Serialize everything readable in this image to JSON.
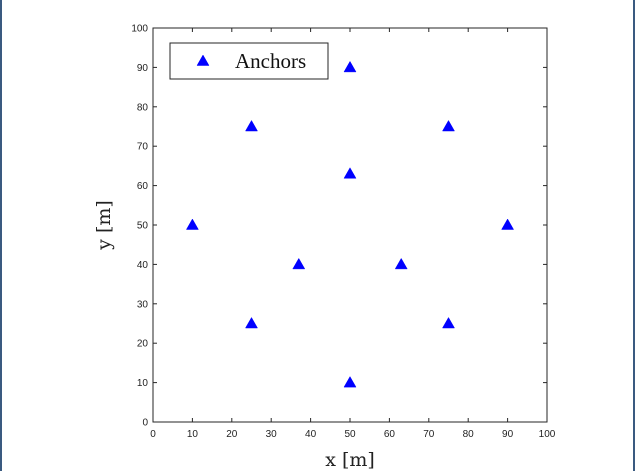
{
  "chart_data": {
    "type": "scatter",
    "xlabel": "x [m]",
    "ylabel": "y [m]",
    "xlim": [
      0,
      100
    ],
    "ylim": [
      0,
      100
    ],
    "xticks": [
      0,
      10,
      20,
      30,
      40,
      50,
      60,
      70,
      80,
      90,
      100
    ],
    "yticks": [
      0,
      10,
      20,
      30,
      40,
      50,
      60,
      70,
      80,
      90,
      100
    ],
    "grid": false,
    "legend_position": "top-left",
    "series": [
      {
        "name": "Anchors",
        "marker": "triangle",
        "color": "#0000ff",
        "points": [
          {
            "x": 50,
            "y": 90
          },
          {
            "x": 25,
            "y": 75
          },
          {
            "x": 75,
            "y": 75
          },
          {
            "x": 50,
            "y": 63
          },
          {
            "x": 10,
            "y": 50
          },
          {
            "x": 90,
            "y": 50
          },
          {
            "x": 37,
            "y": 40
          },
          {
            "x": 63,
            "y": 40
          },
          {
            "x": 25,
            "y": 25
          },
          {
            "x": 75,
            "y": 25
          },
          {
            "x": 50,
            "y": 10
          }
        ]
      }
    ]
  }
}
